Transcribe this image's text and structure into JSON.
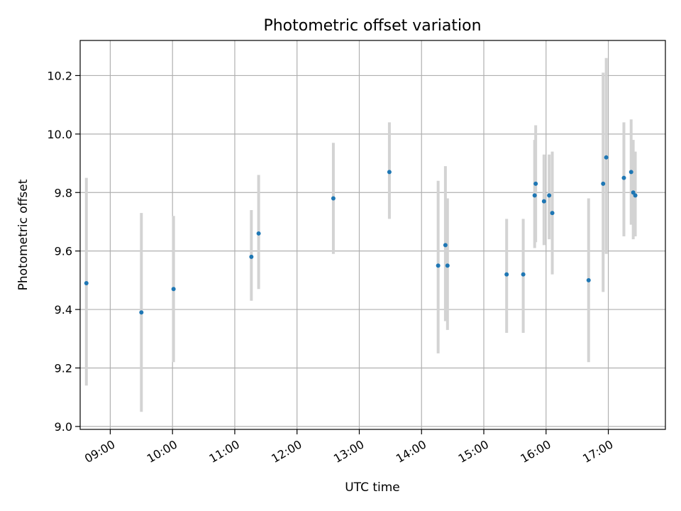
{
  "chart_data": {
    "type": "scatter",
    "title": "Photometric offset variation",
    "xlabel": "UTC time",
    "ylabel": "Photometric offset",
    "xlim": [
      "08:31",
      "17:55"
    ],
    "ylim": [
      8.99,
      10.32
    ],
    "grid": true,
    "x_ticks": [
      "09:00",
      "10:00",
      "11:00",
      "12:00",
      "13:00",
      "14:00",
      "15:00",
      "16:00",
      "17:00"
    ],
    "y_ticks": [
      9.0,
      9.2,
      9.4,
      9.6,
      9.8,
      10.0,
      10.2
    ],
    "y_tick_labels": [
      "9.0",
      "9.2",
      "9.4",
      "9.6",
      "9.8",
      "10.0",
      "10.2"
    ],
    "series": [
      {
        "marker_color": "#1f77b4",
        "error_color": "#d3d3d3",
        "points": [
          {
            "x": "08:37",
            "y": 9.49,
            "err_low": 9.14,
            "err_high": 9.85
          },
          {
            "x": "09:30",
            "y": 9.39,
            "err_low": 9.05,
            "err_high": 9.73
          },
          {
            "x": "10:01",
            "y": 9.47,
            "err_low": 9.22,
            "err_high": 9.72
          },
          {
            "x": "11:16",
            "y": 9.58,
            "err_low": 9.43,
            "err_high": 9.74
          },
          {
            "x": "11:23",
            "y": 9.66,
            "err_low": 9.47,
            "err_high": 9.86
          },
          {
            "x": "12:35",
            "y": 9.78,
            "err_low": 9.59,
            "err_high": 9.97
          },
          {
            "x": "13:29",
            "y": 9.87,
            "err_low": 9.71,
            "err_high": 10.04
          },
          {
            "x": "14:16",
            "y": 9.55,
            "err_low": 9.25,
            "err_high": 9.84
          },
          {
            "x": "14:23",
            "y": 9.62,
            "err_low": 9.36,
            "err_high": 9.89
          },
          {
            "x": "14:25",
            "y": 9.55,
            "err_low": 9.33,
            "err_high": 9.78
          },
          {
            "x": "15:22",
            "y": 9.52,
            "err_low": 9.32,
            "err_high": 9.71
          },
          {
            "x": "15:38",
            "y": 9.52,
            "err_low": 9.32,
            "err_high": 9.71
          },
          {
            "x": "15:49",
            "y": 9.79,
            "err_low": 9.61,
            "err_high": 9.98
          },
          {
            "x": "15:50",
            "y": 9.83,
            "err_low": 9.63,
            "err_high": 10.03
          },
          {
            "x": "15:58",
            "y": 9.77,
            "err_low": 9.62,
            "err_high": 9.93
          },
          {
            "x": "16:03",
            "y": 9.79,
            "err_low": 9.64,
            "err_high": 9.93
          },
          {
            "x": "16:06",
            "y": 9.73,
            "err_low": 9.52,
            "err_high": 9.94
          },
          {
            "x": "16:41",
            "y": 9.5,
            "err_low": 9.22,
            "err_high": 9.78
          },
          {
            "x": "16:55",
            "y": 9.83,
            "err_low": 9.46,
            "err_high": 10.21
          },
          {
            "x": "16:58",
            "y": 9.92,
            "err_low": 9.59,
            "err_high": 10.26
          },
          {
            "x": "17:15",
            "y": 9.85,
            "err_low": 9.65,
            "err_high": 10.04
          },
          {
            "x": "17:22",
            "y": 9.87,
            "err_low": 9.69,
            "err_high": 10.05
          },
          {
            "x": "17:24",
            "y": 9.8,
            "err_low": 9.64,
            "err_high": 9.98
          },
          {
            "x": "17:26",
            "y": 9.79,
            "err_low": 9.65,
            "err_high": 9.94
          }
        ]
      }
    ]
  }
}
